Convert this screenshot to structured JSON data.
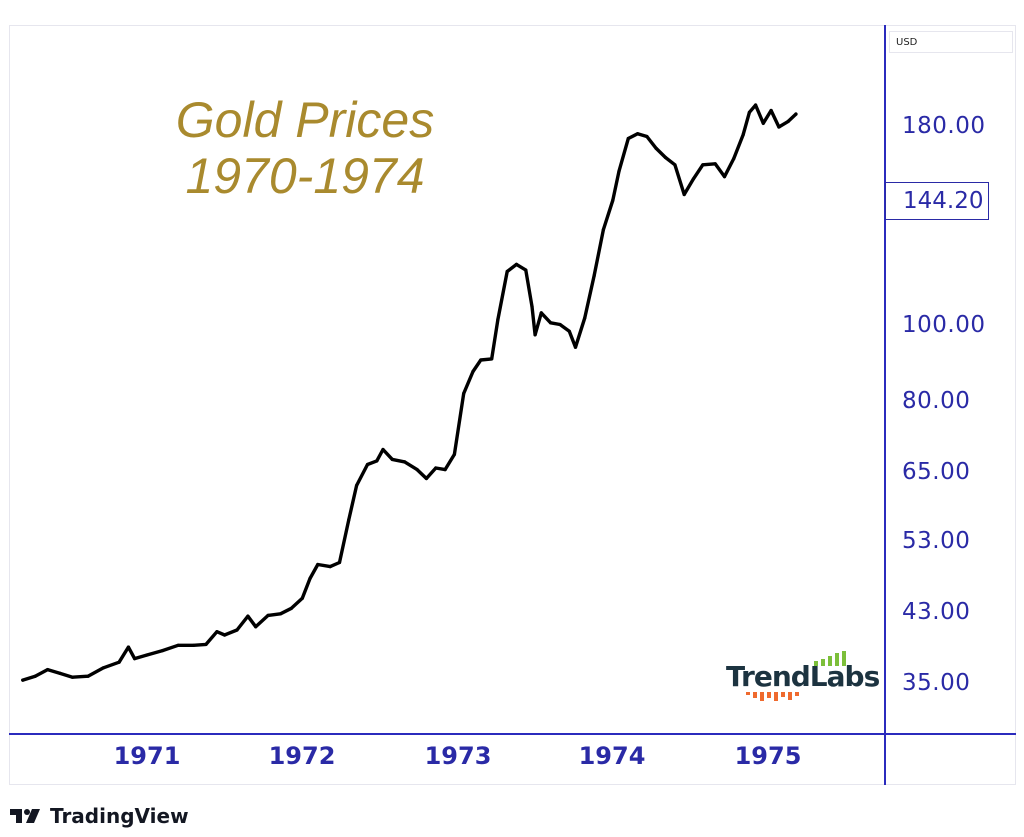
{
  "chart_data": {
    "type": "line",
    "title": "Gold Prices 1970-1974",
    "title_lines": [
      "Gold Prices",
      "1970-1974"
    ],
    "currency_label": "USD",
    "y_scale": "log",
    "ylim": [
      32,
      200
    ],
    "xlim": [
      1970.2,
      1975.6
    ],
    "y_ticks": [
      "180.00",
      "100.00",
      "80.00",
      "65.00",
      "53.00",
      "43.00",
      "35.00"
    ],
    "current_price": "144.20",
    "x_ticks": [
      "1971",
      "1972",
      "1973",
      "1974",
      "1975"
    ],
    "series": [
      {
        "color": "#000000",
        "points": [
          [
            1970.2,
            35.2
          ],
          [
            1970.28,
            35.6
          ],
          [
            1970.36,
            36.3
          ],
          [
            1970.44,
            35.9
          ],
          [
            1970.52,
            35.5
          ],
          [
            1970.62,
            35.6
          ],
          [
            1970.72,
            36.5
          ],
          [
            1970.82,
            37.1
          ],
          [
            1970.88,
            38.8
          ],
          [
            1970.92,
            37.5
          ],
          [
            1971.0,
            37.9
          ],
          [
            1971.1,
            38.4
          ],
          [
            1971.2,
            39.0
          ],
          [
            1971.3,
            39.0
          ],
          [
            1971.38,
            39.1
          ],
          [
            1971.45,
            40.6
          ],
          [
            1971.5,
            40.2
          ],
          [
            1971.58,
            40.8
          ],
          [
            1971.65,
            42.5
          ],
          [
            1971.7,
            41.2
          ],
          [
            1971.78,
            42.6
          ],
          [
            1971.86,
            42.8
          ],
          [
            1971.93,
            43.5
          ],
          [
            1972.0,
            44.8
          ],
          [
            1972.05,
            47.5
          ],
          [
            1972.1,
            49.5
          ],
          [
            1972.18,
            49.2
          ],
          [
            1972.24,
            49.8
          ],
          [
            1972.3,
            56.5
          ],
          [
            1972.35,
            62.5
          ],
          [
            1972.42,
            66.5
          ],
          [
            1972.48,
            67.2
          ],
          [
            1972.52,
            69.5
          ],
          [
            1972.58,
            67.5
          ],
          [
            1972.66,
            67.0
          ],
          [
            1972.74,
            65.5
          ],
          [
            1972.8,
            63.8
          ],
          [
            1972.86,
            65.8
          ],
          [
            1972.92,
            65.5
          ],
          [
            1972.98,
            68.5
          ],
          [
            1973.04,
            82.0
          ],
          [
            1973.1,
            87.5
          ],
          [
            1973.15,
            90.5
          ],
          [
            1973.22,
            90.8
          ],
          [
            1973.26,
            102.0
          ],
          [
            1973.32,
            117.5
          ],
          [
            1973.38,
            120.0
          ],
          [
            1973.44,
            118.0
          ],
          [
            1973.48,
            106.0
          ],
          [
            1973.5,
            97.5
          ],
          [
            1973.54,
            104.0
          ],
          [
            1973.6,
            101.0
          ],
          [
            1973.66,
            100.5
          ],
          [
            1973.72,
            98.5
          ],
          [
            1973.76,
            94.0
          ],
          [
            1973.82,
            102.5
          ],
          [
            1973.88,
            116.0
          ],
          [
            1973.94,
            133.0
          ],
          [
            1974.0,
            145.0
          ],
          [
            1974.04,
            158.0
          ],
          [
            1974.1,
            174.0
          ],
          [
            1974.16,
            176.5
          ],
          [
            1974.22,
            175.0
          ],
          [
            1974.28,
            169.0
          ],
          [
            1974.34,
            164.5
          ],
          [
            1974.4,
            161.0
          ],
          [
            1974.46,
            147.5
          ],
          [
            1974.52,
            154.5
          ],
          [
            1974.58,
            161.0
          ],
          [
            1974.66,
            161.5
          ],
          [
            1974.72,
            155.5
          ],
          [
            1974.78,
            164.0
          ],
          [
            1974.84,
            176.0
          ],
          [
            1974.88,
            188.0
          ],
          [
            1974.92,
            192.0
          ],
          [
            1974.97,
            182.0
          ],
          [
            1975.02,
            189.0
          ],
          [
            1975.07,
            180.0
          ],
          [
            1975.13,
            183.0
          ],
          [
            1975.18,
            187.0
          ]
        ]
      }
    ]
  },
  "watermark": {
    "name": "TrendLabs"
  },
  "footer": {
    "brand": "TradingView"
  }
}
